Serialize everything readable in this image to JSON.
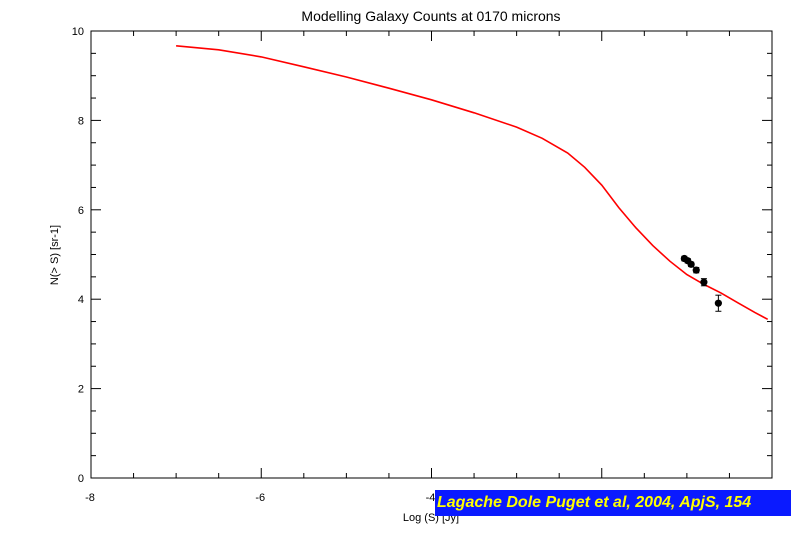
{
  "chart_data": {
    "type": "line",
    "title": "Modelling Galaxy Counts at 0170 microns",
    "xlabel": "Log (S) [Jy]",
    "ylabel": "N(> S) [sr-1]",
    "xlim": [
      -8,
      0
    ],
    "ylim": [
      0,
      10
    ],
    "xticks": [
      -8,
      -6,
      -4,
      -2,
      0
    ],
    "yticks": [
      0,
      2,
      4,
      6,
      8,
      10
    ],
    "xtick_labels": [
      "-8",
      "-6",
      "-4",
      "",
      ""
    ],
    "ytick_labels": [
      "0",
      "2",
      "4",
      "6",
      "8",
      "10"
    ],
    "series": [
      {
        "kind": "line",
        "color": "#ff0000",
        "x": [
          -7.0,
          -6.5,
          -6.0,
          -5.5,
          -5.0,
          -4.5,
          -4.0,
          -3.5,
          -3.0,
          -2.7,
          -2.4,
          -2.2,
          -2.0,
          -1.8,
          -1.6,
          -1.4,
          -1.2,
          -1.0,
          -0.8,
          -0.6,
          -0.4,
          -0.2,
          -0.05
        ],
        "y": [
          9.67,
          9.58,
          9.42,
          9.2,
          8.97,
          8.72,
          8.46,
          8.17,
          7.85,
          7.6,
          7.27,
          6.95,
          6.55,
          6.05,
          5.6,
          5.2,
          4.85,
          4.55,
          4.33,
          4.14,
          3.92,
          3.7,
          3.55
        ]
      },
      {
        "kind": "points",
        "color": "#000000",
        "x": [
          -1.03,
          -0.99,
          -0.95,
          -0.89,
          -0.8,
          -0.63
        ],
        "y": [
          4.91,
          4.86,
          4.78,
          4.65,
          4.38,
          3.91
        ],
        "yerr": [
          0.05,
          0.05,
          0.05,
          0.06,
          0.08,
          0.18
        ]
      }
    ]
  },
  "credit": "Lagache Dole Puget et al, 2004, ApjS, 154"
}
